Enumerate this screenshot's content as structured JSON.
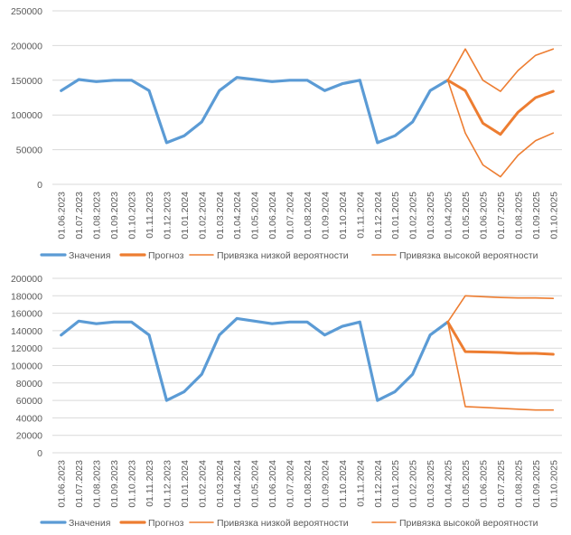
{
  "colors": {
    "values_line": "#5b9bd5",
    "forecast_line": "#ed7d31",
    "bound_line": "#ed7d31",
    "grid": "#d9d9d9",
    "text": "#595959"
  },
  "chart_data": [
    {
      "type": "line",
      "title": "",
      "xlabel": "",
      "ylabel": "",
      "ylim": [
        0,
        250000
      ],
      "y_ticks": [
        "0",
        "50000",
        "100000",
        "150000",
        "200000",
        "250000"
      ],
      "categories": [
        "01.06.2023",
        "01.07.2023",
        "01.08.2023",
        "01.09.2023",
        "01.10.2023",
        "01.11.2023",
        "01.12.2023",
        "01.01.2024",
        "01.02.2024",
        "01.03.2024",
        "01.04.2024",
        "01.05.2024",
        "01.06.2024",
        "01.07.2024",
        "01.08.2024",
        "01.09.2024",
        "01.10.2024",
        "01.11.2024",
        "01.12.2024",
        "01.01.2025",
        "01.02.2025",
        "01.03.2025",
        "01.04.2025",
        "01.05.2025",
        "01.06.2025",
        "01.07.2025",
        "01.08.2025",
        "01.09.2025",
        "01.10.2025"
      ],
      "legend_position": "bottom",
      "series": [
        {
          "name": "Значения",
          "role": "values",
          "values": [
            135000,
            151000,
            148000,
            150000,
            150000,
            135000,
            60000,
            70000,
            90000,
            135000,
            154000,
            151000,
            148000,
            150000,
            150000,
            135000,
            145000,
            150000,
            60000,
            70000,
            90000,
            135000,
            150000,
            null,
            null,
            null,
            null,
            null,
            null
          ]
        },
        {
          "name": "Прогноз",
          "role": "forecast",
          "values": [
            null,
            null,
            null,
            null,
            null,
            null,
            null,
            null,
            null,
            null,
            null,
            null,
            null,
            null,
            null,
            null,
            null,
            null,
            null,
            null,
            null,
            null,
            150000,
            135000,
            88000,
            72000,
            104000,
            125000,
            134000
          ]
        },
        {
          "name": "Привязка низкой вероятности",
          "role": "bound",
          "values": [
            null,
            null,
            null,
            null,
            null,
            null,
            null,
            null,
            null,
            null,
            null,
            null,
            null,
            null,
            null,
            null,
            null,
            null,
            null,
            null,
            null,
            null,
            150000,
            74000,
            28000,
            11000,
            42000,
            63000,
            74000
          ]
        },
        {
          "name": "Привязка высокой вероятности",
          "role": "bound",
          "values": [
            null,
            null,
            null,
            null,
            null,
            null,
            null,
            null,
            null,
            null,
            null,
            null,
            null,
            null,
            null,
            null,
            null,
            null,
            null,
            null,
            null,
            null,
            150000,
            195000,
            150000,
            134000,
            164000,
            186000,
            195000
          ]
        }
      ]
    },
    {
      "type": "line",
      "title": "",
      "xlabel": "",
      "ylabel": "",
      "ylim": [
        0,
        200000
      ],
      "y_ticks": [
        "0",
        "20000",
        "40000",
        "60000",
        "80000",
        "100000",
        "120000",
        "140000",
        "160000",
        "180000",
        "200000"
      ],
      "categories": [
        "01.06.2023",
        "01.07.2023",
        "01.08.2023",
        "01.09.2023",
        "01.10.2023",
        "01.11.2023",
        "01.12.2023",
        "01.01.2024",
        "01.02.2024",
        "01.03.2024",
        "01.04.2024",
        "01.05.2024",
        "01.06.2024",
        "01.07.2024",
        "01.08.2024",
        "01.09.2024",
        "01.10.2024",
        "01.11.2024",
        "01.12.2024",
        "01.01.2025",
        "01.02.2025",
        "01.03.2025",
        "01.04.2025",
        "01.05.2025",
        "01.06.2025",
        "01.07.2025",
        "01.08.2025",
        "01.09.2025",
        "01.10.2025"
      ],
      "legend_position": "bottom",
      "series": [
        {
          "name": "Значения",
          "role": "values",
          "values": [
            135000,
            151000,
            148000,
            150000,
            150000,
            135000,
            60000,
            70000,
            90000,
            135000,
            154000,
            151000,
            148000,
            150000,
            150000,
            135000,
            145000,
            150000,
            60000,
            70000,
            90000,
            135000,
            150000,
            null,
            null,
            null,
            null,
            null,
            null
          ]
        },
        {
          "name": "Прогноз",
          "role": "forecast",
          "values": [
            null,
            null,
            null,
            null,
            null,
            null,
            null,
            null,
            null,
            null,
            null,
            null,
            null,
            null,
            null,
            null,
            null,
            null,
            null,
            null,
            null,
            null,
            150000,
            116000,
            115500,
            115000,
            114000,
            114000,
            113000
          ]
        },
        {
          "name": "Привязка низкой вероятности",
          "role": "bound",
          "values": [
            null,
            null,
            null,
            null,
            null,
            null,
            null,
            null,
            null,
            null,
            null,
            null,
            null,
            null,
            null,
            null,
            null,
            null,
            null,
            null,
            null,
            null,
            150000,
            53000,
            52000,
            51000,
            50000,
            49000,
            49000
          ]
        },
        {
          "name": "Привязка высокой вероятности",
          "role": "bound",
          "values": [
            null,
            null,
            null,
            null,
            null,
            null,
            null,
            null,
            null,
            null,
            null,
            null,
            null,
            null,
            null,
            null,
            null,
            null,
            null,
            null,
            null,
            null,
            150000,
            180000,
            179000,
            178000,
            177500,
            177500,
            177000
          ]
        }
      ]
    }
  ]
}
